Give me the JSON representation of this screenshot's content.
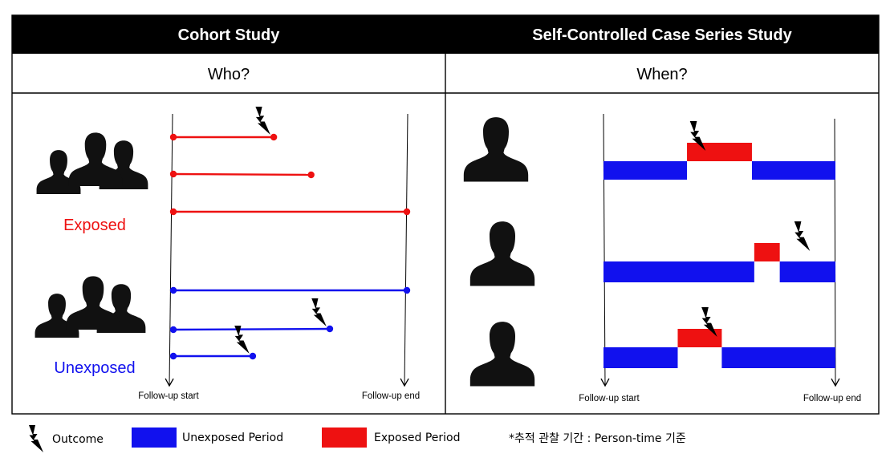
{
  "colors": {
    "exposed": "#ee1111",
    "unexposed": "#1111ee",
    "header_bg": "#000000",
    "border": "#000000"
  },
  "cohort": {
    "title": "Cohort Study",
    "question": "Who?",
    "exposed_label": "Exposed",
    "unexposed_label": "Unexposed",
    "axis_start_label": "Follow-up start",
    "axis_end_label": "Follow-up end",
    "lines": [
      {
        "group": "exposed",
        "end": 0.43,
        "outcome": true
      },
      {
        "group": "exposed",
        "end": 0.59,
        "outcome": false
      },
      {
        "group": "exposed",
        "end": 1.0,
        "outcome": false
      },
      {
        "group": "unexposed",
        "end": 1.0,
        "outcome": false
      },
      {
        "group": "unexposed",
        "end": 0.67,
        "outcome": true
      },
      {
        "group": "unexposed",
        "end": 0.34,
        "outcome": true
      }
    ]
  },
  "sccs": {
    "title": "Self-Controlled Case Series Study",
    "question": "When?",
    "axis_start_label": "Follow-up start",
    "axis_end_label": "Follow-up end",
    "people": [
      {
        "segments": [
          {
            "type": "unexposed",
            "from": 0.0,
            "to": 0.36
          },
          {
            "type": "exposed",
            "from": 0.36,
            "to": 0.64
          },
          {
            "type": "unexposed",
            "from": 0.64,
            "to": 1.0
          }
        ],
        "outcome": 0.42
      },
      {
        "segments": [
          {
            "type": "unexposed",
            "from": 0.0,
            "to": 0.65
          },
          {
            "type": "exposed",
            "from": 0.65,
            "to": 0.76
          },
          {
            "type": "unexposed",
            "from": 0.76,
            "to": 1.0
          }
        ],
        "outcome": 0.87
      },
      {
        "segments": [
          {
            "type": "unexposed",
            "from": 0.0,
            "to": 0.32
          },
          {
            "type": "exposed",
            "from": 0.32,
            "to": 0.51
          },
          {
            "type": "unexposed",
            "from": 0.51,
            "to": 1.0
          }
        ],
        "outcome": 0.47
      }
    ]
  },
  "legend": {
    "outcome_label": "Outcome",
    "unexposed_label": "Unexposed Period",
    "exposed_label": "Exposed Period",
    "note": "*추적 관찰 기간 : Person-time 기준"
  }
}
